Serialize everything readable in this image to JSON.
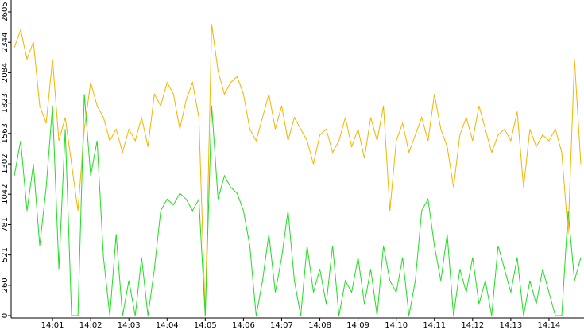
{
  "chart_data": {
    "type": "line",
    "categories": [
      null,
      null,
      null,
      null,
      null,
      null,
      "14:01",
      null,
      null,
      null,
      null,
      null,
      "14:02",
      null,
      null,
      null,
      null,
      null,
      "14:03",
      null,
      null,
      null,
      null,
      null,
      "14:04",
      null,
      null,
      null,
      null,
      null,
      "14:05",
      null,
      null,
      null,
      null,
      null,
      "14:06",
      null,
      null,
      null,
      null,
      null,
      "14:07",
      null,
      null,
      null,
      null,
      null,
      "14:08",
      null,
      null,
      null,
      null,
      null,
      "14:09",
      null,
      null,
      null,
      null,
      null,
      "14:10",
      null,
      null,
      null,
      null,
      null,
      "14:11",
      null,
      null,
      null,
      null,
      null,
      "14:12",
      null,
      null,
      null,
      null,
      null,
      "14:13",
      null,
      null,
      null,
      null,
      null,
      "14:14",
      null,
      null,
      null,
      null,
      null
    ],
    "series": [
      {
        "color": "#f5b400",
        "values": [
          2300,
          2450,
          2200,
          2350,
          1800,
          1650,
          2200,
          1500,
          1700,
          1300,
          900,
          1600,
          2000,
          1800,
          1700,
          1500,
          1600,
          1400,
          1600,
          1500,
          1700,
          1450,
          1900,
          1800,
          2000,
          1900,
          1600,
          1850,
          2000,
          1700,
          0,
          2500,
          2100,
          1900,
          2000,
          2050,
          1900,
          1600,
          1500,
          1700,
          1900,
          1600,
          1800,
          1500,
          1700,
          1600,
          1500,
          1300,
          1550,
          1600,
          1400,
          1500,
          1700,
          1450,
          1600,
          1350,
          1700,
          1500,
          1800,
          900,
          1500,
          1650,
          1400,
          1550,
          1700,
          1500,
          1900,
          1600,
          1450,
          1100,
          1550,
          1700,
          1500,
          1800,
          1600,
          1400,
          1550,
          1600,
          1500,
          1750,
          1100,
          1600,
          1450,
          1550,
          1500,
          1600,
          1400,
          700,
          2200,
          1300
        ]
      },
      {
        "color": "#22dd22",
        "values": [
          1200,
          1500,
          900,
          1300,
          600,
          1100,
          1800,
          400,
          1600,
          0,
          0,
          1900,
          1200,
          1500,
          500,
          0,
          700,
          0,
          300,
          0,
          500,
          0,
          400,
          900,
          1000,
          950,
          1050,
          1000,
          900,
          1000,
          0,
          1800,
          1000,
          1200,
          1100,
          1050,
          900,
          600,
          0,
          300,
          700,
          200,
          500,
          900,
          300,
          0,
          600,
          200,
          400,
          100,
          600,
          0,
          300,
          200,
          500,
          100,
          400,
          0,
          600,
          300,
          200,
          500,
          0,
          300,
          900,
          1000,
          600,
          300,
          700,
          0,
          400,
          200,
          500,
          100,
          300,
          0,
          600,
          400,
          200,
          500,
          0,
          300,
          100,
          400,
          200,
          0,
          0,
          900,
          300,
          500
        ]
      }
    ],
    "ylim": [
      0,
      2605
    ],
    "yticks": [
      0,
      260,
      521,
      781,
      1042,
      1302,
      1563,
      1823,
      2084,
      2344,
      2605
    ]
  }
}
